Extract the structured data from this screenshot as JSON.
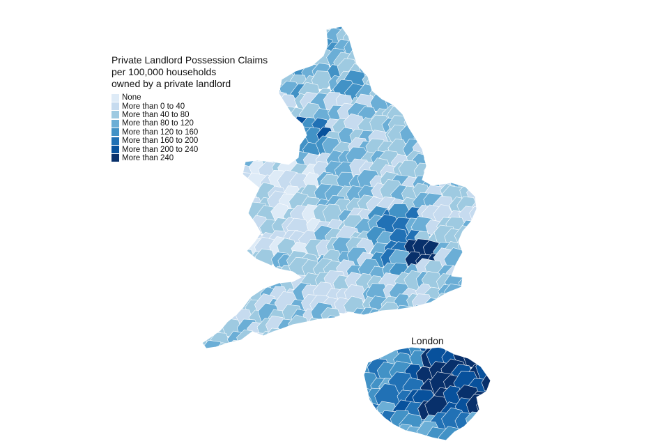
{
  "legend": {
    "title_lines": [
      "Private Landlord Possession Claims",
      "per 100,000 households",
      "owned by a private landlord"
    ],
    "items": [
      {
        "label": "None",
        "color": "#deebf7"
      },
      {
        "label": "More than 0 to 40",
        "color": "#c6dbef"
      },
      {
        "label": "More than 40 to 80",
        "color": "#9ecae1"
      },
      {
        "label": "More than 80 to 120",
        "color": "#6baed6"
      },
      {
        "label": "More than 120 to 160",
        "color": "#4292c6"
      },
      {
        "label": "More than 160 to 200",
        "color": "#2171b5"
      },
      {
        "label": "More than 200 to 240",
        "color": "#08519c"
      },
      {
        "label": "More than 240",
        "color": "#08306b"
      }
    ]
  },
  "inset": {
    "title": "London"
  }
}
